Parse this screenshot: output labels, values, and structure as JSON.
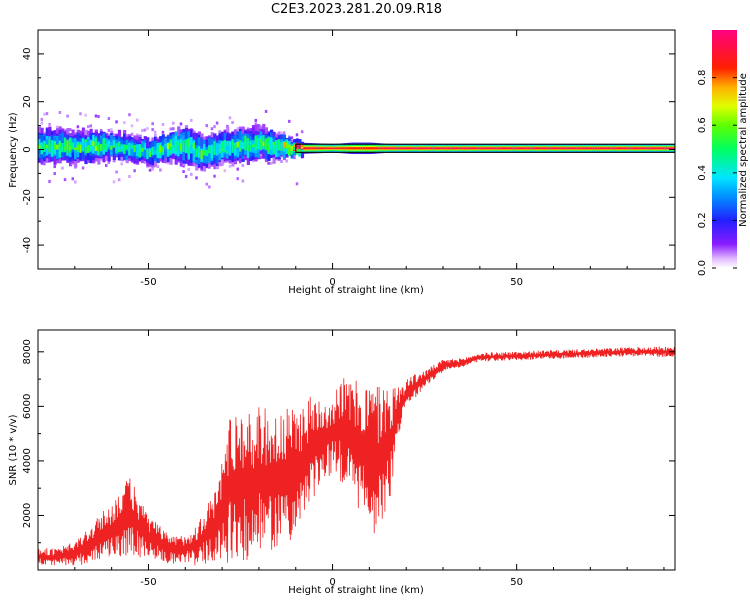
{
  "title": "C2E3.2023.281.20.09.R18",
  "chart_data": [
    {
      "type": "heatmap",
      "xlabel": "Height of straight line (km)",
      "ylabel": "Frequency (Hz)",
      "xlim": [
        -80,
        93
      ],
      "ylim": [
        -50,
        50
      ],
      "xticks": [
        -50,
        0,
        50
      ],
      "yticks": [
        -40,
        -20,
        0,
        20,
        40
      ],
      "colorbar": {
        "label": "Normalized spectral amplitude",
        "range": [
          0,
          1
        ],
        "ticks": [
          0.0,
          0.2,
          0.4,
          0.6,
          0.8
        ],
        "tick_labels": [
          "0.0",
          "0.2",
          "0.4",
          "0.6",
          "0.8"
        ],
        "colormap": "rainbow (white-violet-blue-cyan-green-yellow-red-magenta)"
      },
      "ridge": [
        {
          "x": -80,
          "freq": 1.5,
          "spread": 5,
          "amp": 0.55
        },
        {
          "x": -70,
          "freq": 1.0,
          "spread": 5,
          "amp": 0.55
        },
        {
          "x": -60,
          "freq": 1.5,
          "spread": 4,
          "amp": 0.55
        },
        {
          "x": -50,
          "freq": -1.0,
          "spread": 4,
          "amp": 0.5
        },
        {
          "x": -45,
          "freq": 1.0,
          "spread": 4,
          "amp": 0.6
        },
        {
          "x": -40,
          "freq": 2.0,
          "spread": 6,
          "amp": 0.55
        },
        {
          "x": -35,
          "freq": -2.0,
          "spread": 5,
          "amp": 0.55
        },
        {
          "x": -30,
          "freq": 1.0,
          "spread": 5,
          "amp": 0.5
        },
        {
          "x": -25,
          "freq": 1.5,
          "spread": 5,
          "amp": 0.55
        },
        {
          "x": -20,
          "freq": 2.5,
          "spread": 5,
          "amp": 0.55
        },
        {
          "x": -15,
          "freq": 1.0,
          "spread": 4,
          "amp": 0.6
        },
        {
          "x": -10,
          "freq": 0.5,
          "spread": 2,
          "amp": 0.9
        },
        {
          "x": 0,
          "freq": 0.5,
          "spread": 1.5,
          "amp": 0.9
        },
        {
          "x": 5,
          "freq": 0.5,
          "spread": 2,
          "amp": 0.85
        },
        {
          "x": 10,
          "freq": 0.5,
          "spread": 2,
          "amp": 0.85
        },
        {
          "x": 15,
          "freq": 0.5,
          "spread": 1.5,
          "amp": 0.95
        },
        {
          "x": 40,
          "freq": 0.5,
          "spread": 1.5,
          "amp": 0.95
        },
        {
          "x": 93,
          "freq": 0.5,
          "spread": 1.5,
          "amp": 0.95
        }
      ]
    },
    {
      "type": "line",
      "xlabel": "Height of straight line (km)",
      "ylabel": "SNR (10 * v/v)",
      "xlim": [
        -80,
        93
      ],
      "ylim": [
        0,
        8800
      ],
      "xticks": [
        -50,
        0,
        50
      ],
      "yticks": [
        2000,
        4000,
        6000,
        8000
      ],
      "line_color": "#ee2222",
      "series": [
        {
          "x": [
            -80,
            -75,
            -70,
            -65,
            -60,
            -57,
            -55,
            -52,
            -50,
            -47,
            -45,
            -42,
            -40,
            -37,
            -35,
            -32,
            -30,
            -28,
            -25,
            -22,
            -20,
            -18,
            -15,
            -12,
            -10,
            -8,
            -5,
            -3,
            0,
            2,
            5,
            7,
            10,
            12,
            14,
            16,
            18,
            20,
            25,
            30,
            35,
            40,
            50,
            60,
            70,
            80,
            93
          ],
          "mean": [
            500,
            450,
            600,
            1000,
            1500,
            1800,
            2000,
            1500,
            1200,
            1000,
            800,
            700,
            800,
            900,
            1200,
            1600,
            2200,
            3000,
            3200,
            3000,
            3400,
            3300,
            3200,
            3400,
            3600,
            4000,
            4500,
            4800,
            5000,
            5200,
            4800,
            4500,
            4200,
            4000,
            4200,
            4800,
            5800,
            6500,
            7000,
            7500,
            7600,
            7800,
            7850,
            7900,
            7950,
            8000,
            8000
          ],
          "amp": [
            300,
            300,
            400,
            700,
            900,
            1200,
            1300,
            1000,
            700,
            600,
            500,
            500,
            500,
            700,
            900,
            1200,
            1800,
            2500,
            2600,
            2400,
            2500,
            2400,
            2300,
            2300,
            2200,
            2000,
            1800,
            1500,
            1300,
            1800,
            2000,
            2200,
            2500,
            2600,
            2500,
            1800,
            900,
            500,
            300,
            200,
            150,
            150,
            150,
            150,
            150,
            150,
            200
          ]
        }
      ]
    }
  ]
}
